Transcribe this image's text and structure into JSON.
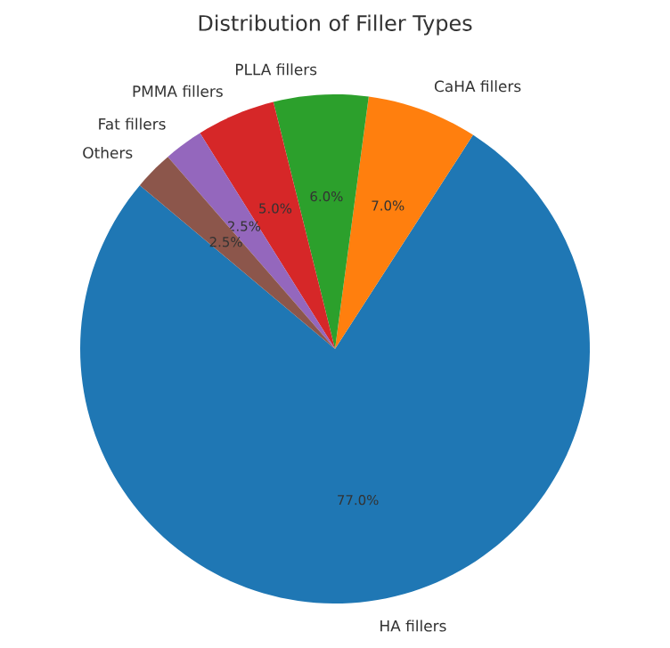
{
  "chart_data": {
    "type": "pie",
    "title": "Distribution of Filler Types",
    "categories": [
      "HA fillers",
      "CaHA fillers",
      "PLLA fillers",
      "PMMA fillers",
      "Fat fillers",
      "Others"
    ],
    "values": [
      77.0,
      7.0,
      6.0,
      5.0,
      2.5,
      2.5
    ],
    "colors": [
      "#1f77b4",
      "#ff7f0e",
      "#2ca02c",
      "#d62728",
      "#9467bd",
      "#8c564b"
    ],
    "value_labels": [
      "77.0%",
      "7.0%",
      "6.0%",
      "5.0%",
      "2.5%",
      "2.5%"
    ]
  }
}
